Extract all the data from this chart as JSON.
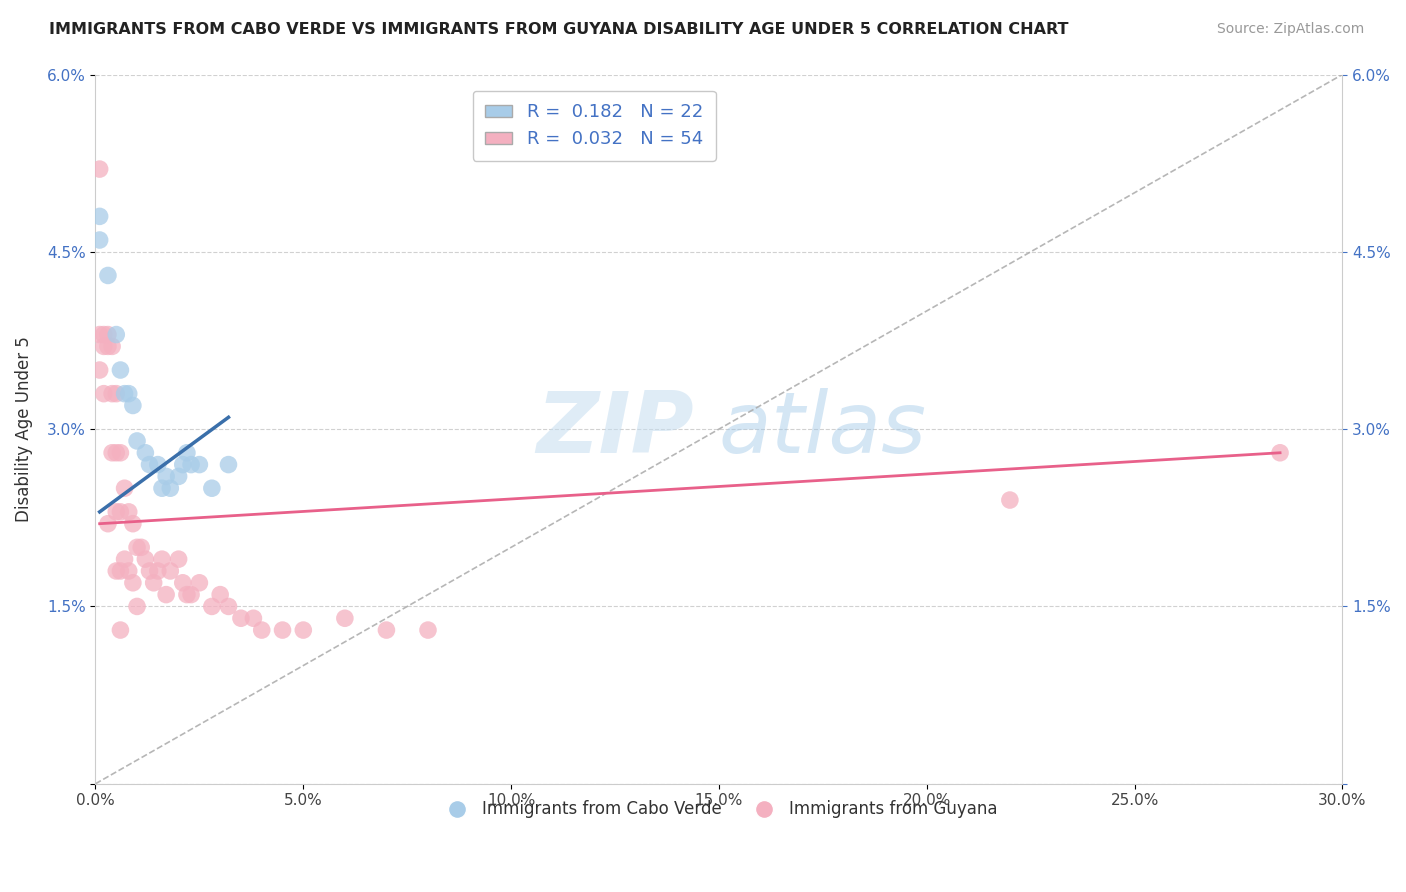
{
  "title": "IMMIGRANTS FROM CABO VERDE VS IMMIGRANTS FROM GUYANA DISABILITY AGE UNDER 5 CORRELATION CHART",
  "source": "Source: ZipAtlas.com",
  "ylabel": "Disability Age Under 5",
  "legend_label_blue": "Immigrants from Cabo Verde",
  "legend_label_pink": "Immigrants from Guyana",
  "R_blue": 0.182,
  "N_blue": 22,
  "R_pink": 0.032,
  "N_pink": 54,
  "xmin": 0.0,
  "xmax": 0.3,
  "ymin": 0.0,
  "ymax": 0.06,
  "xticks": [
    0.0,
    0.05,
    0.1,
    0.15,
    0.2,
    0.25,
    0.3
  ],
  "yticks": [
    0.0,
    0.015,
    0.03,
    0.045,
    0.06
  ],
  "ytick_labels_left": [
    "",
    "1.5%",
    "3.0%",
    "4.5%",
    "6.0%"
  ],
  "ytick_labels_right": [
    "",
    "1.5%",
    "3.0%",
    "4.5%",
    "6.0%"
  ],
  "color_blue": "#a8cce8",
  "color_pink": "#f4b0c0",
  "color_blue_line": "#3a6faa",
  "color_pink_line": "#e8608a",
  "watermark_zip": "ZIP",
  "watermark_atlas": "atlas",
  "cabo_verde_x": [
    0.001,
    0.001,
    0.003,
    0.005,
    0.006,
    0.007,
    0.008,
    0.009,
    0.01,
    0.012,
    0.013,
    0.015,
    0.016,
    0.017,
    0.018,
    0.02,
    0.021,
    0.022,
    0.023,
    0.025,
    0.028,
    0.032
  ],
  "cabo_verde_y": [
    0.048,
    0.046,
    0.043,
    0.038,
    0.035,
    0.033,
    0.033,
    0.032,
    0.029,
    0.028,
    0.027,
    0.027,
    0.025,
    0.026,
    0.025,
    0.026,
    0.027,
    0.028,
    0.027,
    0.027,
    0.025,
    0.027
  ],
  "guyana_x": [
    0.001,
    0.001,
    0.001,
    0.002,
    0.002,
    0.002,
    0.003,
    0.003,
    0.003,
    0.004,
    0.004,
    0.004,
    0.005,
    0.005,
    0.005,
    0.005,
    0.006,
    0.006,
    0.006,
    0.006,
    0.007,
    0.007,
    0.008,
    0.008,
    0.009,
    0.009,
    0.01,
    0.01,
    0.011,
    0.012,
    0.013,
    0.014,
    0.015,
    0.016,
    0.017,
    0.018,
    0.02,
    0.021,
    0.022,
    0.023,
    0.025,
    0.028,
    0.03,
    0.032,
    0.035,
    0.038,
    0.04,
    0.045,
    0.05,
    0.06,
    0.07,
    0.08,
    0.22,
    0.285
  ],
  "guyana_y": [
    0.052,
    0.038,
    0.035,
    0.038,
    0.037,
    0.033,
    0.038,
    0.037,
    0.022,
    0.037,
    0.033,
    0.028,
    0.033,
    0.028,
    0.023,
    0.018,
    0.028,
    0.023,
    0.018,
    0.013,
    0.025,
    0.019,
    0.023,
    0.018,
    0.022,
    0.017,
    0.02,
    0.015,
    0.02,
    0.019,
    0.018,
    0.017,
    0.018,
    0.019,
    0.016,
    0.018,
    0.019,
    0.017,
    0.016,
    0.016,
    0.017,
    0.015,
    0.016,
    0.015,
    0.014,
    0.014,
    0.013,
    0.013,
    0.013,
    0.014,
    0.013,
    0.013,
    0.024,
    0.028
  ],
  "blue_line_x": [
    0.001,
    0.032
  ],
  "blue_line_y": [
    0.023,
    0.031
  ],
  "pink_line_x": [
    0.001,
    0.285
  ],
  "pink_line_y": [
    0.022,
    0.028
  ]
}
